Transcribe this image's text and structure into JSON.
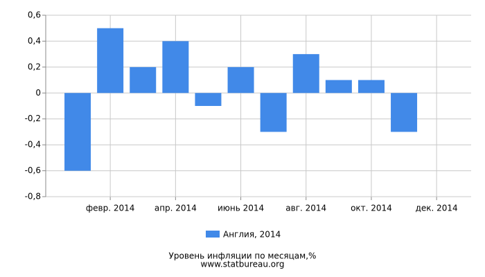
{
  "chart_data": {
    "type": "bar",
    "title": "Уровень инфляции по месяцам,%",
    "source": "www.statbureau.org",
    "categories": [
      null,
      "февр. 2014",
      null,
      "апр. 2014",
      null,
      "июнь 2014",
      null,
      "авг. 2014",
      null,
      "окт. 2014",
      null,
      "дек. 2014"
    ],
    "series": [
      {
        "name": "Англия, 2014",
        "color": "#4189e8",
        "values": [
          -0.6,
          0.5,
          0.2,
          0.4,
          -0.1,
          0.2,
          -0.3,
          0.3,
          0.1,
          0.1,
          -0.3,
          0
        ]
      }
    ],
    "ylim": [
      -0.8,
      0.6
    ],
    "yticks": [
      {
        "value": -0.8,
        "label": "-0,8"
      },
      {
        "value": -0.6,
        "label": "-0,6"
      },
      {
        "value": -0.4,
        "label": "-0,4"
      },
      {
        "value": -0.2,
        "label": "-0,2"
      },
      0,
      {
        "value": 0.2,
        "label": "0,2"
      },
      {
        "value": 0.4,
        "label": "0,4"
      },
      {
        "value": 0.6,
        "label": "0,6"
      }
    ],
    "grid": true,
    "legend": "bottom"
  }
}
